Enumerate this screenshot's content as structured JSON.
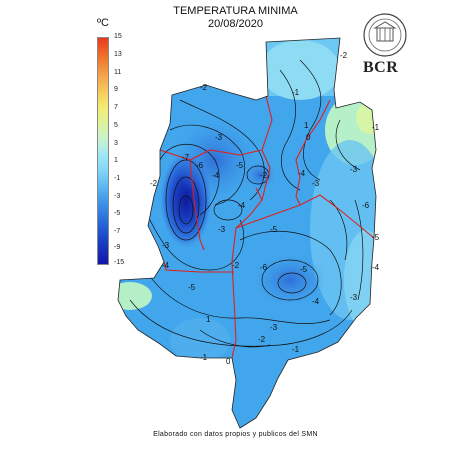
{
  "title": "TEMPERATURA MINIMA",
  "date": "20/08/2020",
  "unit": "ºC",
  "legend_ticks": [
    "15",
    "13",
    "11",
    "9",
    "7",
    "5",
    "3",
    "1",
    "-1",
    "-3",
    "-5",
    "-7",
    "-9",
    "-15"
  ],
  "logo": {
    "text": "BCR",
    "icon": "bcr-seal-icon"
  },
  "contour_labels": [
    "-2",
    "-3",
    "-4",
    "-5",
    "-6",
    "-7",
    "-1",
    "0",
    "1",
    "-2",
    "-3",
    "-4",
    "-5",
    "-6",
    "-5",
    "-4",
    "-3",
    "-2",
    "-1",
    "-3",
    "-4",
    "-5",
    "-6",
    "-3",
    "-2",
    "-4",
    "-3",
    "-2",
    "-1",
    "0",
    "1",
    "-5",
    "-4",
    "-3",
    "-2",
    "-1"
  ],
  "footer": "Elaborado con datos propios y publicos del SMN",
  "colors": {
    "water_light": "#7fe0f0",
    "cold_core": "#1428a8",
    "boundary": "#e0201c"
  }
}
